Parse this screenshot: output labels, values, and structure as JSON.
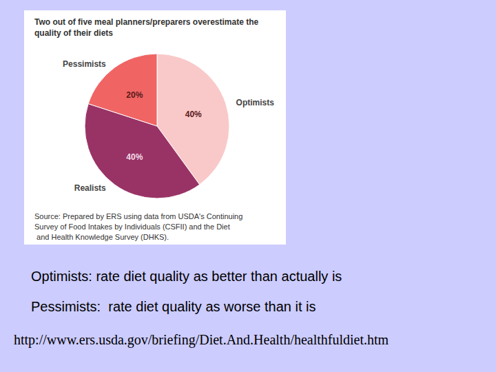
{
  "chart_data": {
    "type": "pie",
    "title": "Two out of five meal planners/preparers overestimate the quality of their diets",
    "categories": [
      "Optimists",
      "Realists",
      "Pessimists"
    ],
    "values": [
      40,
      40,
      20
    ],
    "value_labels": [
      "40%",
      "40%",
      "20%"
    ],
    "colors": [
      "#f9c9c9",
      "#993366",
      "#f06464"
    ],
    "data_labels": true,
    "annotations": [
      "Source: Prepared by ERS using data from USDA's Continuing Survey of Food Intakes by Individuals (CSFII) and the Diet and Health Knowledge Survey (DHKS)."
    ]
  },
  "notes": [
    "Optimists: rate diet quality as better than actually is",
    "Pessimists:  rate diet quality as worse than it is"
  ],
  "url": "http://www.ers.usda.gov/briefing/Diet.And.Health/healthfuldiet.htm"
}
